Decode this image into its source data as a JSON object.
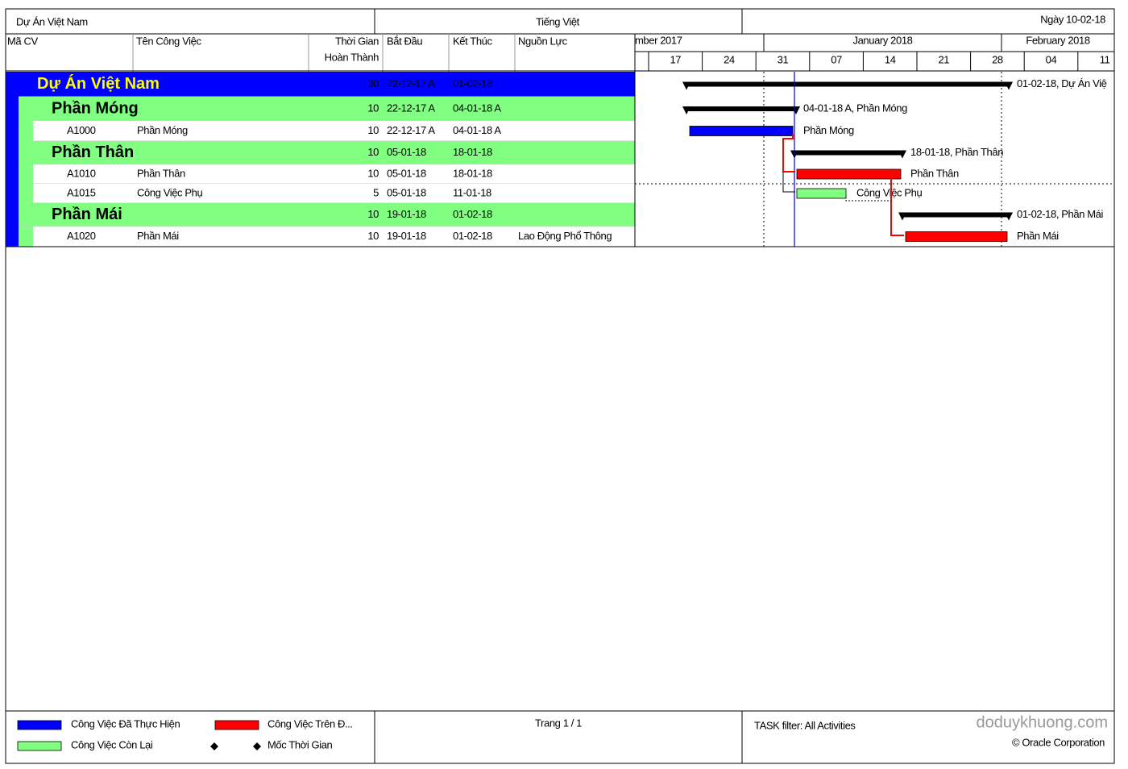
{
  "header": {
    "project": "Dự Án Việt Nam",
    "language": "Tiếng Việt",
    "date": "Ngày 10-02-18"
  },
  "columns": [
    "Mã CV",
    "Tên Công Việc",
    "Thời Gian",
    "Hoàn Thành",
    "Bắt Đầu",
    "Kết Thúc",
    "Nguồn Lực"
  ],
  "timescale": {
    "months": [
      "mber 2017",
      "January 2018",
      "February 2018"
    ],
    "weeks": [
      "17",
      "24",
      "31",
      "07",
      "14",
      "21",
      "28",
      "04",
      "11"
    ]
  },
  "rows": [
    {
      "name": "Dự Án Việt Nam",
      "duration": 30,
      "start": "22-12-17 A",
      "finish": "01-02-18",
      "bar_label": "01-02-18, Dự Án Việ"
    },
    {
      "name": "Phần Móng",
      "duration": 10,
      "start": "22-12-17 A",
      "finish": "04-01-18 A",
      "bar_label": "04-01-18 A, Phần Móng"
    },
    {
      "id": "A1000",
      "name": "Phần Móng",
      "duration": 10,
      "start": "22-12-17 A",
      "finish": "04-01-18 A",
      "bar_label": "Phần Móng",
      "bar_color": "#0000ff"
    },
    {
      "name": "Phần Thân",
      "duration": 10,
      "start": "05-01-18",
      "finish": "18-01-18",
      "bar_label": "18-01-18, Phần Thân"
    },
    {
      "id": "A1010",
      "name": "Phần Thân",
      "duration": 10,
      "start": "05-01-18",
      "finish": "18-01-18",
      "bar_label": "Phần Thân",
      "bar_color": "#ff0000"
    },
    {
      "id": "A1015",
      "name": "Công Việc Phụ",
      "duration": 5,
      "start": "05-01-18",
      "finish": "11-01-18",
      "bar_label": "Công Việc Phụ",
      "bar_color": "#80ff80"
    },
    {
      "name": "Phần Mái",
      "duration": 10,
      "start": "19-01-18",
      "finish": "01-02-18",
      "bar_label": "01-02-18, Phần Mái"
    },
    {
      "id": "A1020",
      "name": "Phần Mái",
      "duration": 10,
      "start": "19-01-18",
      "finish": "01-02-18",
      "resource": "Lao Động Phổ Thông",
      "bar_label": "Phần Mái",
      "bar_color": "#ff0000"
    }
  ],
  "legend": [
    {
      "label": "Công Việc Đã Thực Hiện",
      "color": "#0000ff"
    },
    {
      "label": "Công Việc Trên Đ...",
      "color": "#ff0000"
    },
    {
      "label": "Công Việc Còn Lại",
      "color": "#80ff80"
    },
    {
      "label": "Mốc Thời Gian"
    }
  ],
  "footer": {
    "page": "Trang 1 / 1",
    "filter": "TASK filter: All Activities",
    "watermark": "doduykhuong.com",
    "copyright": "© Oracle Corporation"
  }
}
